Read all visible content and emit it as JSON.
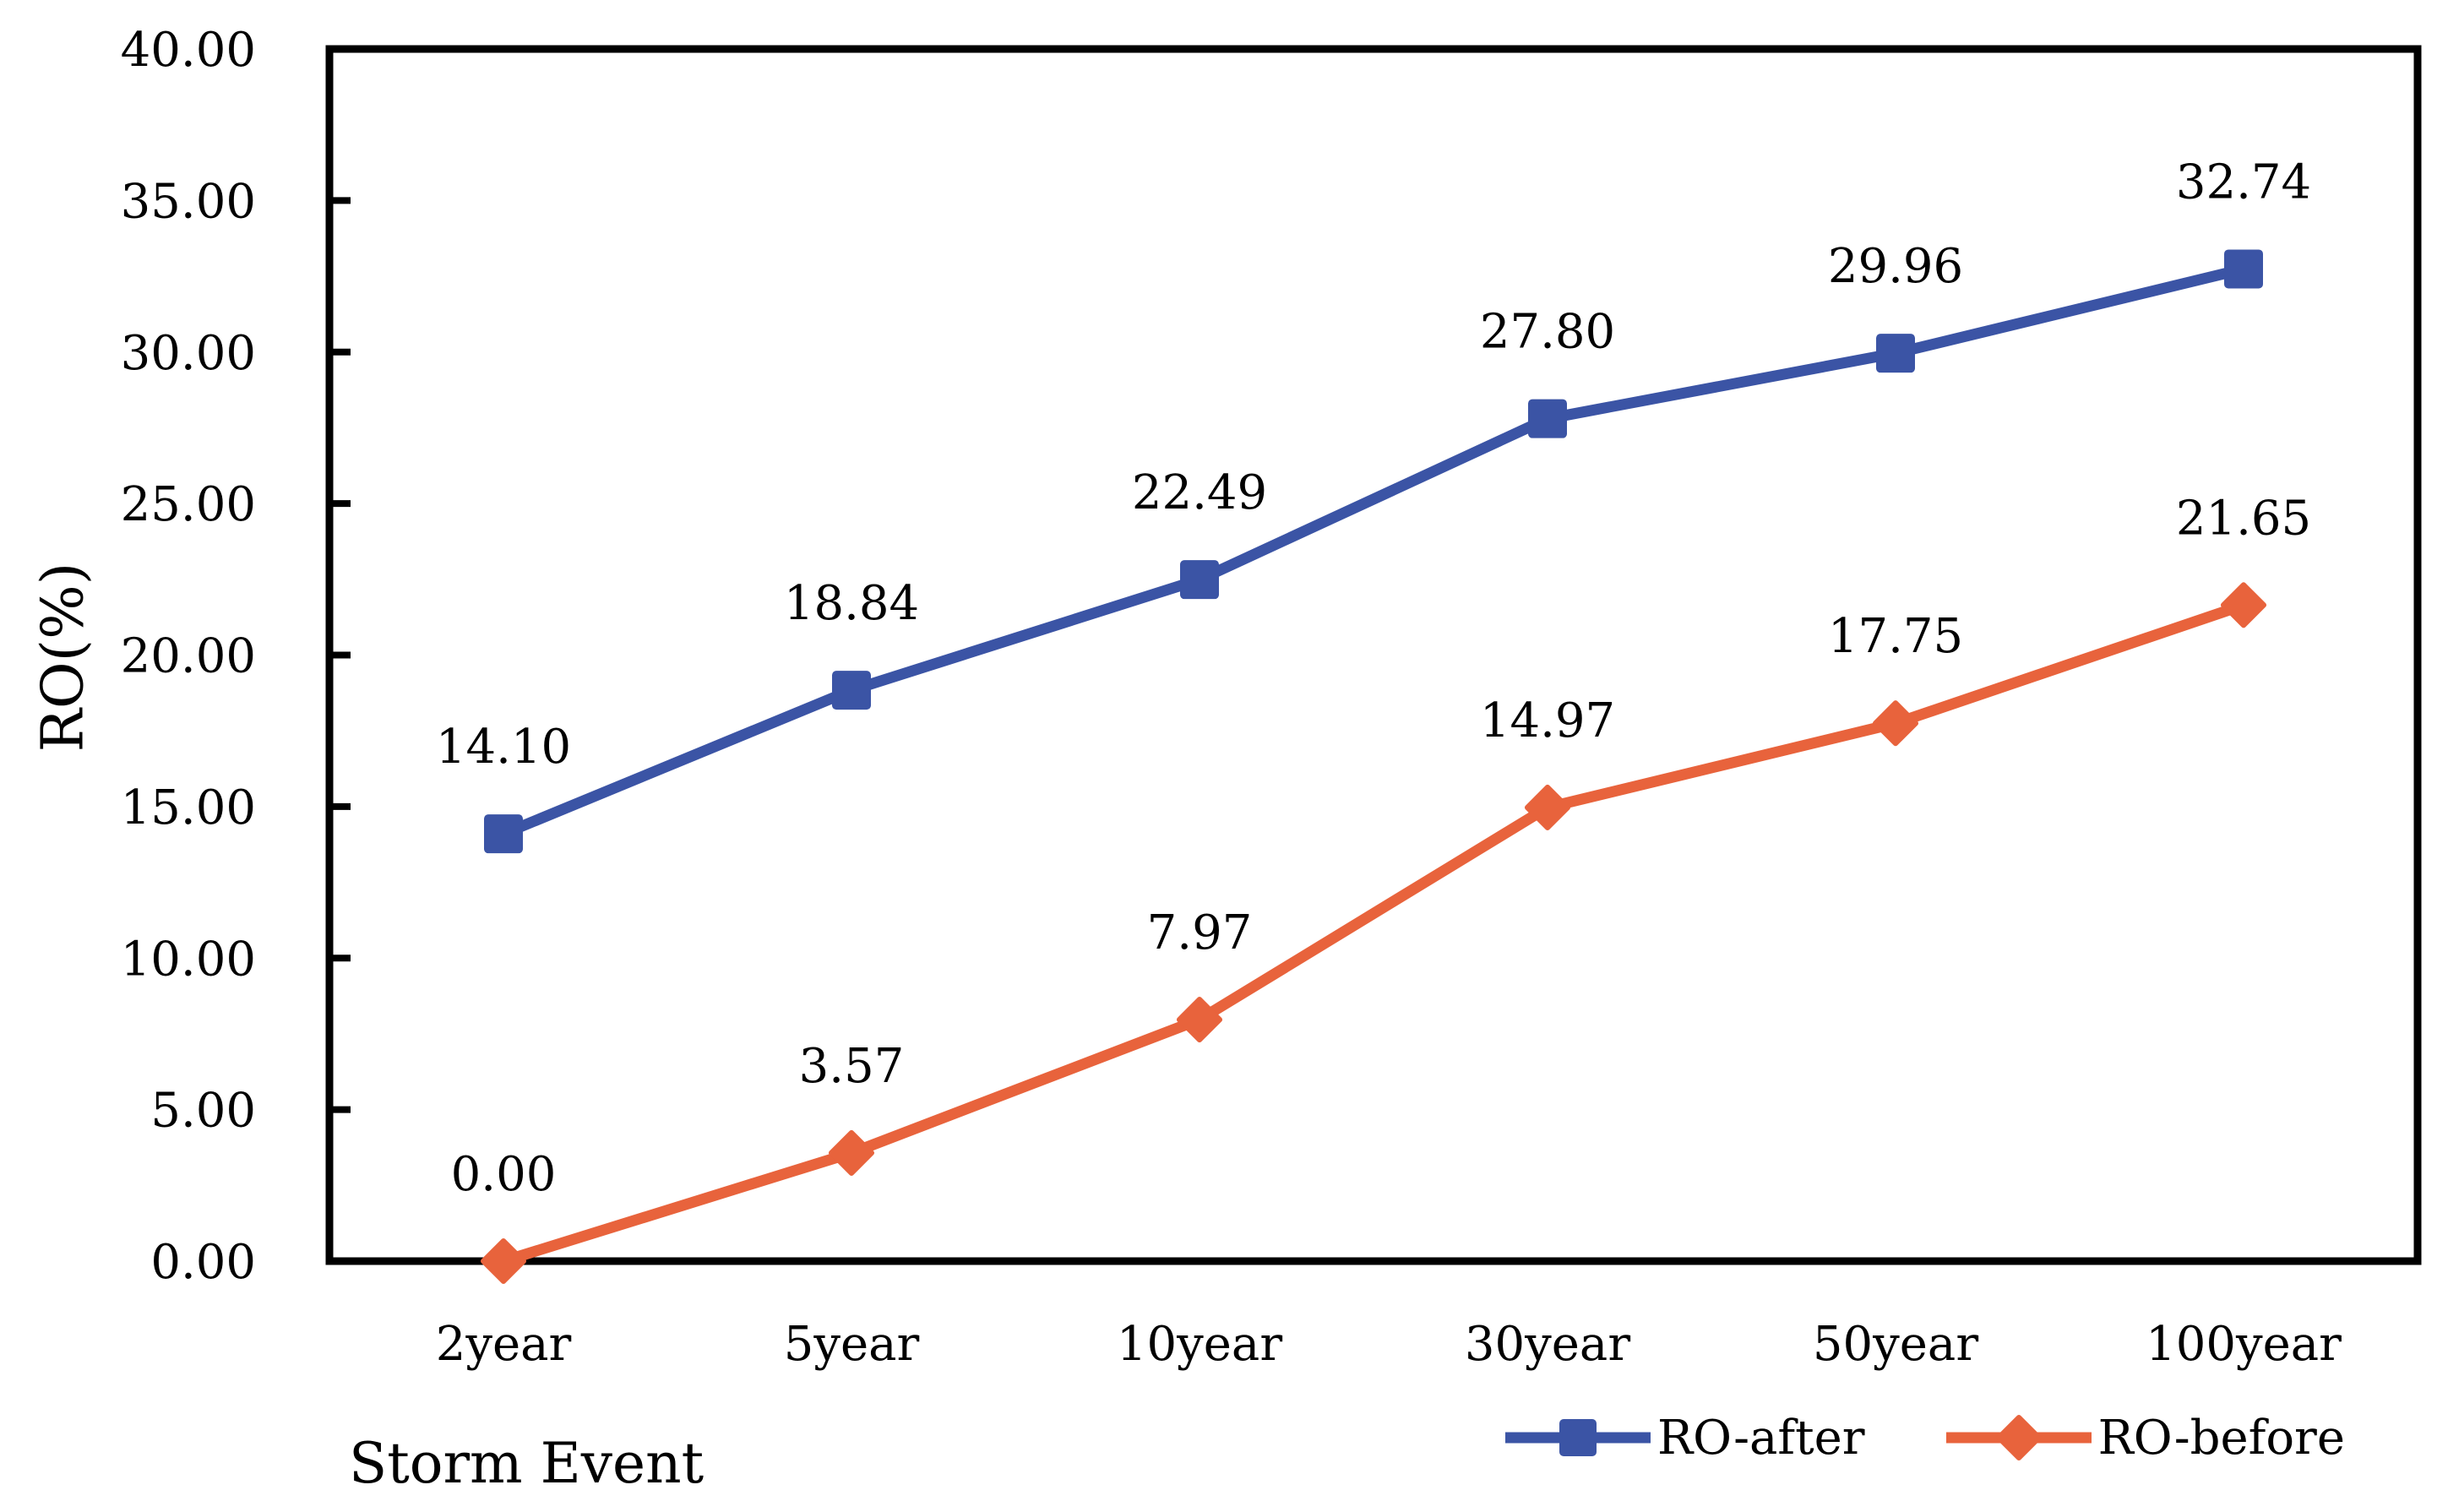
{
  "figure": {
    "background_color": "#FFFFFF",
    "axis_color": "#000000",
    "text_color": "#000000"
  },
  "chart_data": {
    "type": "line",
    "title": "",
    "xlabel": "Storm Event",
    "ylabel": "RO(%)",
    "categories": [
      "2year",
      "5year",
      "10year",
      "30year",
      "50year",
      "100year"
    ],
    "series": [
      {
        "name": "RO-after",
        "color": "#3B54A5",
        "marker": "square",
        "values": [
          14.1,
          18.84,
          22.49,
          27.8,
          29.96,
          32.74
        ],
        "data_labels": [
          "14.10",
          "18.84",
          "22.49",
          "27.80",
          "29.96",
          "32.74"
        ]
      },
      {
        "name": "RO-before",
        "color": "#E8633C",
        "marker": "diamond",
        "values": [
          0.0,
          3.57,
          7.97,
          14.97,
          17.75,
          21.65
        ],
        "data_labels": [
          "0.00",
          "3.57",
          "7.97",
          "14.97",
          "17.75",
          "21.65"
        ]
      }
    ],
    "ylim": [
      0,
      40
    ],
    "ytick_step": 5,
    "y_tick_values": [
      0,
      5,
      10,
      15,
      20,
      25,
      30,
      35,
      40
    ],
    "y_tick_labels": [
      "0.00",
      "5.00",
      "10.00",
      "15.00",
      "20.00",
      "25.00",
      "30.00",
      "35.00",
      "40.00"
    ],
    "grid": false,
    "plot_border": true,
    "legend_position": "bottom-right",
    "axis_color": "#000000",
    "label_color": "#000000"
  }
}
